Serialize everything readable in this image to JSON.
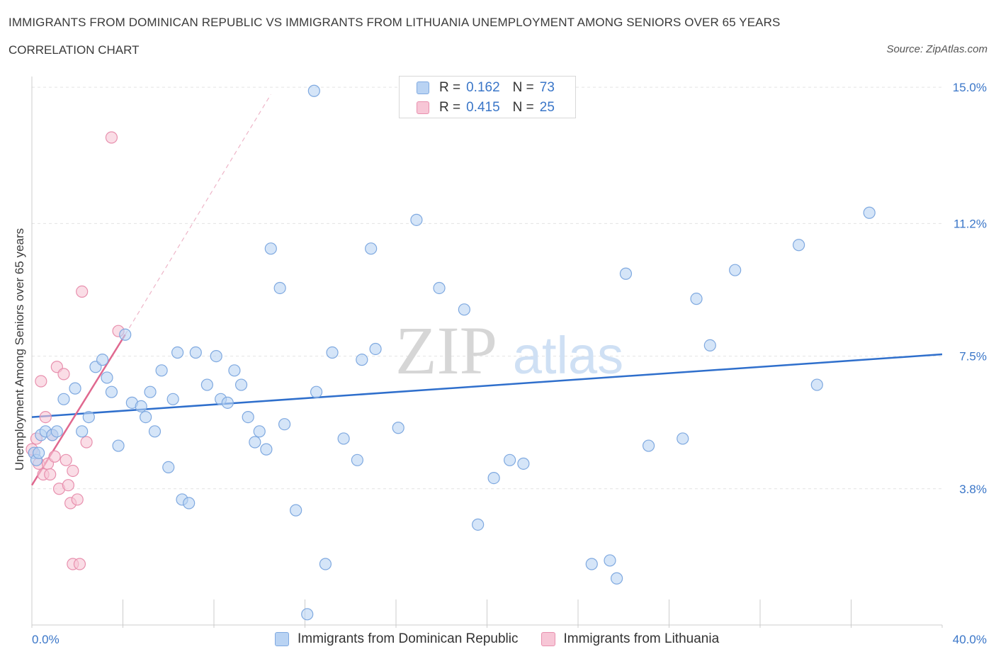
{
  "header": {
    "title": "IMMIGRANTS FROM DOMINICAN REPUBLIC VS IMMIGRANTS FROM LITHUANIA UNEMPLOYMENT AMONG SENIORS OVER 65 YEARS",
    "subtitle": "CORRELATION CHART",
    "source": "Source: ZipAtlas.com"
  },
  "watermark": {
    "zip": "ZIP",
    "atlas": "atlas"
  },
  "legend_top": {
    "rows": [
      {
        "r_label": "R =",
        "r_value": "0.162",
        "n_label": "N =",
        "n_value": "73"
      },
      {
        "r_label": "R =",
        "r_value": "0.415",
        "n_label": "N =",
        "n_value": "25"
      }
    ]
  },
  "legend_bottom": {
    "items": [
      {
        "label": "Immigrants from Dominican Republic"
      },
      {
        "label": "Immigrants from Lithuania"
      }
    ]
  },
  "colors": {
    "blue_fill": "#b9d3f3",
    "blue_stroke": "#7fa9e0",
    "blue_line": "#2f6fcc",
    "pink_fill": "#f7c6d6",
    "pink_stroke": "#e890ae",
    "pink_line": "#e0688f",
    "grid": "#e3e3e3",
    "tick_label": "#3a76c8"
  },
  "chart_data": {
    "type": "scatter",
    "title": "IMMIGRANTS FROM DOMINICAN REPUBLIC VS IMMIGRANTS FROM LITHUANIA UNEMPLOYMENT AMONG SENIORS OVER 65 YEARS",
    "xlabel": "",
    "ylabel": "Unemployment Among Seniors over 65 years",
    "xlim": [
      0,
      40
    ],
    "ylim": [
      0,
      15.3
    ],
    "x_tick_labels": [
      "0.0%",
      "40.0%"
    ],
    "y_ticks": [
      3.8,
      7.5,
      11.2,
      15.0
    ],
    "y_tick_labels": [
      "3.8%",
      "7.5%",
      "11.2%",
      "15.0%"
    ],
    "grid": true,
    "legend_placement": "top-center and bottom",
    "series": [
      {
        "name": "Immigrants from Dominican Republic",
        "R": 0.162,
        "N": 73,
        "trend": {
          "x": [
            0,
            40
          ],
          "y": [
            5.8,
            7.55
          ]
        },
        "points": [
          [
            0.1,
            4.8
          ],
          [
            0.2,
            4.6
          ],
          [
            0.4,
            5.3
          ],
          [
            0.6,
            5.4
          ],
          [
            0.9,
            5.3
          ],
          [
            1.1,
            5.4
          ],
          [
            1.4,
            6.3
          ],
          [
            1.9,
            6.6
          ],
          [
            2.2,
            5.4
          ],
          [
            2.5,
            5.8
          ],
          [
            2.8,
            7.2
          ],
          [
            3.1,
            7.4
          ],
          [
            3.3,
            6.9
          ],
          [
            3.5,
            6.5
          ],
          [
            3.8,
            5.0
          ],
          [
            4.1,
            8.1
          ],
          [
            4.4,
            6.2
          ],
          [
            4.8,
            6.1
          ],
          [
            5.0,
            5.8
          ],
          [
            5.2,
            6.5
          ],
          [
            5.4,
            5.4
          ],
          [
            5.7,
            7.1
          ],
          [
            6.0,
            4.4
          ],
          [
            6.2,
            6.3
          ],
          [
            6.4,
            7.6
          ],
          [
            6.6,
            3.5
          ],
          [
            6.9,
            3.4
          ],
          [
            7.2,
            7.6
          ],
          [
            7.7,
            6.7
          ],
          [
            8.1,
            7.5
          ],
          [
            8.3,
            6.3
          ],
          [
            8.6,
            6.2
          ],
          [
            8.9,
            7.1
          ],
          [
            9.2,
            6.7
          ],
          [
            9.5,
            5.8
          ],
          [
            9.8,
            5.1
          ],
          [
            10.0,
            5.4
          ],
          [
            10.3,
            4.9
          ],
          [
            10.5,
            10.5
          ],
          [
            10.9,
            9.4
          ],
          [
            11.1,
            5.6
          ],
          [
            11.6,
            3.2
          ],
          [
            12.1,
            0.3
          ],
          [
            12.4,
            14.9
          ],
          [
            12.5,
            6.5
          ],
          [
            12.9,
            1.7
          ],
          [
            13.2,
            7.6
          ],
          [
            13.7,
            5.2
          ],
          [
            14.3,
            4.6
          ],
          [
            14.5,
            7.4
          ],
          [
            14.9,
            10.5
          ],
          [
            15.1,
            7.7
          ],
          [
            16.1,
            5.5
          ],
          [
            16.9,
            11.3
          ],
          [
            17.9,
            9.4
          ],
          [
            19.0,
            8.8
          ],
          [
            19.6,
            2.8
          ],
          [
            20.3,
            4.1
          ],
          [
            21.0,
            4.6
          ],
          [
            21.6,
            4.5
          ],
          [
            24.6,
            1.7
          ],
          [
            25.4,
            1.8
          ],
          [
            25.7,
            1.3
          ],
          [
            26.1,
            9.8
          ],
          [
            27.1,
            5.0
          ],
          [
            28.6,
            5.2
          ],
          [
            29.2,
            9.1
          ],
          [
            29.8,
            7.8
          ],
          [
            30.9,
            9.9
          ],
          [
            33.7,
            10.6
          ],
          [
            34.5,
            6.7
          ],
          [
            36.8,
            11.5
          ],
          [
            0.3,
            4.8
          ]
        ]
      },
      {
        "name": "Immigrants from Lithuania",
        "R": 0.415,
        "N": 25,
        "trend": {
          "x": [
            0,
            4.1
          ],
          "y": [
            3.9,
            8.1
          ]
        },
        "trend_dashed": {
          "x": [
            4.1,
            10.5
          ],
          "y": [
            8.1,
            14.8
          ]
        },
        "points": [
          [
            0.1,
            4.8
          ],
          [
            0.2,
            5.2
          ],
          [
            0.3,
            4.5
          ],
          [
            0.4,
            6.8
          ],
          [
            0.5,
            4.2
          ],
          [
            0.6,
            5.8
          ],
          [
            0.7,
            4.5
          ],
          [
            0.8,
            4.2
          ],
          [
            0.9,
            5.3
          ],
          [
            1.0,
            4.7
          ],
          [
            1.1,
            7.2
          ],
          [
            1.2,
            3.8
          ],
          [
            1.4,
            7.0
          ],
          [
            1.5,
            4.6
          ],
          [
            1.6,
            3.9
          ],
          [
            1.7,
            3.4
          ],
          [
            1.8,
            4.3
          ],
          [
            1.8,
            1.7
          ],
          [
            2.0,
            3.5
          ],
          [
            2.1,
            1.7
          ],
          [
            2.2,
            9.3
          ],
          [
            2.4,
            5.1
          ],
          [
            3.5,
            13.6
          ],
          [
            3.8,
            8.2
          ],
          [
            0.0,
            4.9
          ]
        ]
      }
    ]
  }
}
